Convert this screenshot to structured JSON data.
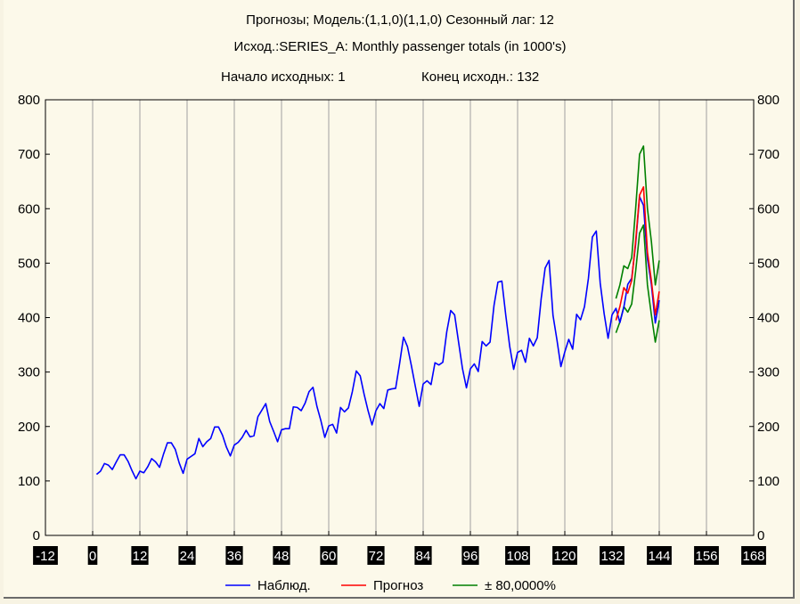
{
  "titles": {
    "line1": "Прогнозы; Модель:(1,1,0)(1,1,0) Сезонный лаг: 12",
    "line2": "Исход.:SERIES_A: Monthly passenger totals (in 1000's)",
    "start_label": "Начало исходных: 1",
    "end_label": "Конец исходн.: 132"
  },
  "colors": {
    "observed": "#0000ff",
    "forecast": "#ff0000",
    "interval": "#008000",
    "grid": "#a0a0a0",
    "tick_bg": "#000000",
    "tick_fg": "#ffffff"
  },
  "chart_data": {
    "type": "line",
    "xlim": [
      -12,
      168
    ],
    "ylim": [
      0,
      800
    ],
    "x_ticks": [
      -12,
      0,
      12,
      24,
      36,
      48,
      60,
      72,
      84,
      96,
      108,
      120,
      132,
      144,
      156,
      168
    ],
    "y_ticks": [
      0,
      100,
      200,
      300,
      400,
      500,
      600,
      700,
      800
    ],
    "grid_x": true,
    "grid_y": false,
    "legend_position": "bottom-center",
    "series": [
      {
        "name": "Наблюд.",
        "color": "#0000ff",
        "x_start": 1,
        "values": [
          112,
          118,
          132,
          129,
          121,
          135,
          148,
          148,
          136,
          119,
          104,
          118,
          115,
          126,
          141,
          135,
          125,
          149,
          170,
          170,
          158,
          133,
          114,
          140,
          145,
          150,
          178,
          163,
          172,
          178,
          199,
          199,
          184,
          162,
          146,
          166,
          171,
          180,
          193,
          181,
          183,
          218,
          230,
          242,
          209,
          191,
          172,
          194,
          196,
          196,
          236,
          235,
          229,
          243,
          264,
          272,
          237,
          211,
          180,
          201,
          204,
          188,
          235,
          227,
          234,
          264,
          302,
          293,
          259,
          229,
          203,
          229,
          242,
          233,
          267,
          269,
          270,
          315,
          364,
          347,
          312,
          274,
          237,
          278,
          284,
          277,
          317,
          313,
          318,
          374,
          413,
          405,
          355,
          306,
          271,
          306,
          315,
          301,
          356,
          348,
          355,
          422,
          465,
          467,
          404,
          347,
          305,
          336,
          340,
          318,
          362,
          348,
          363,
          435,
          491,
          505,
          404,
          359,
          310,
          337,
          360,
          342,
          406,
          396,
          420,
          472,
          548,
          559,
          463,
          407,
          362,
          405,
          417,
          391,
          419,
          461,
          472,
          535,
          622,
          606,
          508,
          461,
          390,
          432
        ]
      },
      {
        "name": "Прогноз",
        "color": "#ff0000",
        "x_start": 133,
        "values": [
          395,
          420,
          455,
          445,
          468,
          540,
          625,
          640,
          520,
          468,
          405,
          448
        ]
      },
      {
        "name": "± 80,0000%",
        "color": "#008000",
        "x_start": 133,
        "upper": [
          435,
          460,
          495,
          490,
          510,
          600,
          700,
          715,
          600,
          540,
          460,
          505
        ],
        "lower": [
          372,
          392,
          420,
          410,
          425,
          485,
          555,
          570,
          460,
          405,
          355,
          395
        ]
      }
    ]
  }
}
